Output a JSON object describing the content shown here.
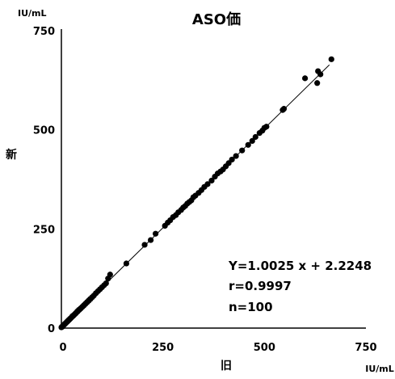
{
  "chart_data": {
    "type": "scatter",
    "title": "ASO価",
    "xlabel": "旧",
    "ylabel": "新",
    "x_unit": "IU/mL",
    "y_unit": "IU/mL",
    "xlim": [
      0,
      750
    ],
    "ylim": [
      0,
      750
    ],
    "xticks": [
      "0",
      "250",
      "500",
      "750"
    ],
    "yticks": [
      "0",
      "250",
      "500",
      "750"
    ],
    "grid": false,
    "regression": {
      "slope": 1.0025,
      "intercept": 2.2248,
      "x_range": [
        0,
        660
      ]
    },
    "annotations": [
      "Y=1.0025 x + 2.2248",
      "r=0.9997",
      "n=100"
    ],
    "series": [
      {
        "x": [
          0,
          2,
          4,
          6,
          8,
          10,
          12,
          14,
          16,
          18,
          20,
          22,
          25,
          28,
          30,
          33,
          36,
          40,
          44,
          48,
          52,
          56,
          60,
          64,
          68,
          72,
          76,
          80,
          85,
          90,
          95,
          100,
          105,
          110,
          115,
          120,
          160,
          205,
          220,
          232,
          255,
          262,
          268,
          275,
          282,
          288,
          295,
          300,
          305,
          310,
          315,
          320,
          325,
          330,
          338,
          345,
          352,
          360,
          370,
          378,
          385,
          392,
          398,
          405,
          412,
          420,
          430,
          445,
          460,
          470,
          478,
          488,
          495,
          500,
          505,
          545,
          548,
          600,
          630,
          632,
          638,
          665,
          3,
          7,
          11,
          15,
          19,
          23,
          27,
          31,
          35,
          39,
          43,
          47,
          51,
          55,
          59,
          63,
          67,
          71
        ],
        "y": [
          2,
          4,
          6,
          8,
          10,
          12,
          14,
          16,
          18,
          20,
          22,
          24,
          27,
          30,
          32,
          35,
          38,
          42,
          46,
          50,
          54,
          58,
          62,
          66,
          70,
          74,
          78,
          82,
          88,
          93,
          98,
          103,
          108,
          113,
          125,
          135,
          163,
          210,
          222,
          238,
          258,
          266,
          272,
          280,
          285,
          292,
          298,
          304,
          308,
          314,
          318,
          322,
          330,
          334,
          341,
          348,
          356,
          363,
          372,
          382,
          390,
          395,
          400,
          408,
          416,
          425,
          434,
          448,
          462,
          472,
          482,
          492,
          498,
          505,
          508,
          550,
          553,
          630,
          618,
          648,
          640,
          678,
          4,
          9,
          13,
          17,
          21,
          25,
          30,
          33,
          37,
          42,
          46,
          49,
          53,
          57,
          61,
          65,
          69,
          73
        ]
      }
    ]
  }
}
